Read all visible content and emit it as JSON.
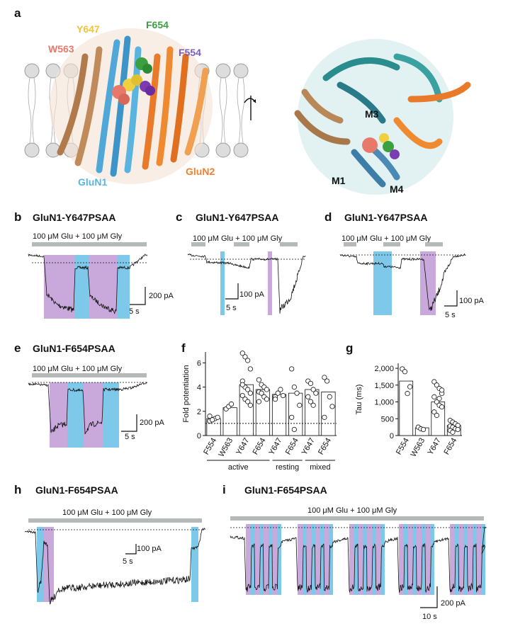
{
  "panel_labels": [
    "a",
    "b",
    "c",
    "d",
    "e",
    "f",
    "g",
    "h",
    "i"
  ],
  "panel_a": {
    "residues": [
      "W563",
      "Y647",
      "F654",
      "F554"
    ],
    "subunits": [
      "GluN1",
      "GluN2"
    ],
    "helices": [
      "M1",
      "M3",
      "M4"
    ]
  },
  "traces": [
    {
      "title": "GluN1-Y647PSAA",
      "application": "100 μM Glu + 100 μM Gly",
      "scale": [
        "200 pA",
        "5 s"
      ]
    },
    {
      "title": "GluN1-Y647PSAA",
      "application": "100 μM Glu + 100 μM Gly",
      "scale": [
        "100 pA",
        "5 s"
      ]
    },
    {
      "title": "GluN1-Y647PSAA",
      "application": "100 μM Glu + 100 μM Gly",
      "scale": [
        "100 pA",
        "5 s"
      ]
    },
    {
      "title": "GluN1-F654PSAA",
      "application": "100 μM Glu + 100 μM Gly",
      "scale": [
        "200 pA",
        "5 s"
      ]
    },
    {
      "title": "GluN1-F654PSAA",
      "application": "100 μM Glu + 100 μM Gly",
      "scale": [
        "100 pA",
        "5 s"
      ]
    },
    {
      "title": "GluN1-F654PSAA",
      "application": "100 μM Glu + 100 μM Gly",
      "scale": [
        "200 pA",
        "10 s"
      ]
    }
  ],
  "chart_data": [
    {
      "type": "bar",
      "ylabel": "Fold potentiation",
      "categories": [
        "F554",
        "W563",
        "Y647",
        "F654",
        "Y647",
        "F654",
        "Y647",
        "F654"
      ],
      "values": [
        1.4,
        2.3,
        4.2,
        3.8,
        3.4,
        3.5,
        3.8,
        3.6
      ],
      "points": [
        [
          1.2,
          1.3,
          1.4,
          1.5,
          1.6,
          1.3
        ],
        [
          2.2,
          2.4,
          2.6
        ],
        [
          6.8,
          6.5,
          6.2,
          5.5,
          4.5,
          4.0,
          3.8,
          3.5,
          3.3,
          3.0,
          2.8,
          2.5,
          4.2
        ],
        [
          4.6,
          4.2,
          4.0,
          3.8,
          3.6,
          3.5,
          3.2,
          3.0,
          2.8
        ],
        [
          3.2,
          3.5,
          3.8,
          3.3,
          3.0
        ],
        [
          5.5,
          4.0,
          3.5,
          2.5,
          1.5,
          0.5
        ],
        [
          4.5,
          4.3,
          3.8,
          3.5,
          3.2,
          2.8,
          2.5
        ],
        [
          4.8,
          4.5,
          3.2,
          2.4,
          1.5
        ]
      ],
      "ylim": [
        0,
        6.9
      ],
      "yticks": [
        0,
        2,
        4,
        6
      ],
      "reference_line": 1,
      "groups": [
        "active",
        "resting",
        "mixed"
      ],
      "color": "#ffffff"
    },
    {
      "type": "bar",
      "ylabel": "Tau (ms)",
      "categories": [
        "F554",
        "W563",
        "Y647",
        "F654"
      ],
      "values": [
        1620,
        230,
        1000,
        300
      ],
      "points": [
        [
          1980,
          1900,
          1250,
          1450
        ],
        [
          250,
          200,
          180
        ],
        [
          1600,
          1500,
          1400,
          1250,
          1150,
          1000,
          900,
          850,
          700,
          600,
          1100,
          1350
        ],
        [
          450,
          400,
          350,
          300,
          280,
          250,
          200,
          180,
          150,
          100
        ]
      ],
      "ylim": [
        0,
        2150
      ],
      "yticks": [
        0,
        500,
        {
          "value": 1000,
          "label": "1,000"
        },
        {
          "value": 1500,
          "label": "1,500"
        },
        {
          "value": 2000,
          "label": "2,000"
        }
      ],
      "color": "#ffffff"
    }
  ]
}
